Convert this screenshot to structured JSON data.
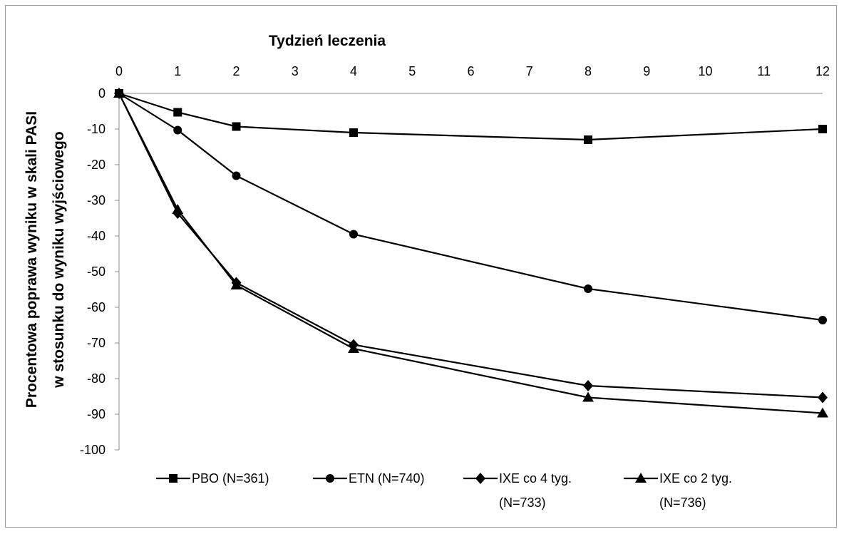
{
  "chart_data": {
    "type": "line",
    "title": "Tydzień leczenia",
    "xlabel": "Tydzień leczenia",
    "ylabel": [
      "Procentowa poprawa wyniku w skali PASI",
      "w stosunku do wyniku wyjściowego"
    ],
    "x_ticks": [
      0,
      1,
      2,
      3,
      4,
      5,
      6,
      7,
      8,
      9,
      10,
      11,
      12
    ],
    "y_ticks": [
      0,
      -10,
      -20,
      -30,
      -40,
      -50,
      -60,
      -70,
      -80,
      -90,
      -100
    ],
    "xlim": [
      0,
      12
    ],
    "ylim": [
      -100,
      0
    ],
    "x_axis_position": "top",
    "grid": false,
    "legend_position": "bottom",
    "series": [
      {
        "name": "PBO (N=361)",
        "marker": "square",
        "x": [
          0,
          1,
          2,
          4,
          8,
          12
        ],
        "values": [
          0,
          -5.3,
          -9.3,
          -11,
          -13,
          -10
        ]
      },
      {
        "name": "ETN (N=740)",
        "marker": "circle",
        "x": [
          0,
          1,
          2,
          4,
          8,
          12
        ],
        "values": [
          0,
          -10.3,
          -23.1,
          -39.5,
          -54.8,
          -63.6
        ]
      },
      {
        "name": "IXE co 4 tyg. (N=733)",
        "marker": "diamond",
        "x": [
          0,
          1,
          2,
          4,
          8,
          12
        ],
        "values": [
          0,
          -33.6,
          -53.1,
          -70.5,
          -82,
          -85.3
        ]
      },
      {
        "name": "IXE co 2 tyg. (N=736)",
        "marker": "triangle",
        "x": [
          0,
          1,
          2,
          4,
          8,
          12
        ],
        "values": [
          0,
          -32.6,
          -53.8,
          -71.6,
          -85.3,
          -89.7
        ]
      }
    ]
  },
  "legend": {
    "items": [
      {
        "line1": "PBO (N=361)",
        "line2": ""
      },
      {
        "line1": "ETN (N=740)",
        "line2": ""
      },
      {
        "line1": "IXE co 4 tyg.",
        "line2": "(N=733)"
      },
      {
        "line1": "IXE co 2 tyg.",
        "line2": "(N=736)"
      }
    ]
  },
  "colors": {
    "line": "#000000",
    "axis": "#8c8c8c",
    "frame": "#9a9a9a"
  }
}
